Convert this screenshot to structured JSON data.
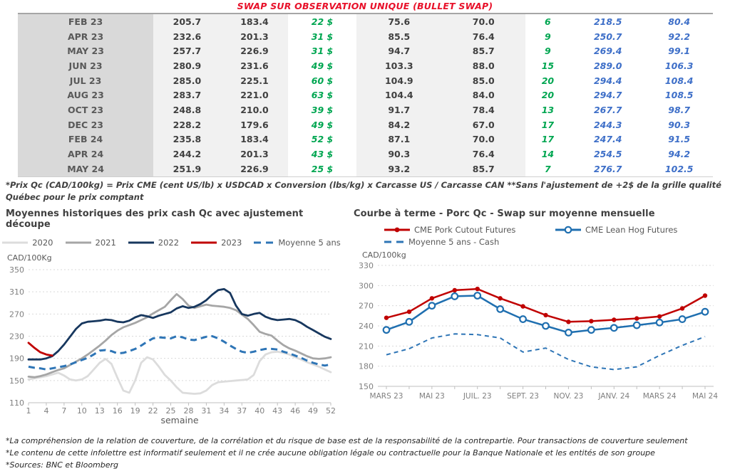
{
  "page_title": "SWAP SUR OBSERVATION UNIQUE (BULLET SWAP)",
  "table": {
    "rows": [
      [
        "FEB 23",
        "205.7",
        "183.4",
        "22 $",
        "75.6",
        "70.0",
        "6",
        "218.5",
        "80.4"
      ],
      [
        "APR 23",
        "232.6",
        "201.3",
        "31 $",
        "85.5",
        "76.4",
        "9",
        "250.7",
        "92.2"
      ],
      [
        "MAY 23",
        "257.7",
        "226.9",
        "31 $",
        "94.7",
        "85.7",
        "9",
        "269.4",
        "99.1"
      ],
      [
        "JUN 23",
        "280.9",
        "231.6",
        "49 $",
        "103.3",
        "88.0",
        "15",
        "289.0",
        "106.3"
      ],
      [
        "JUL 23",
        "285.0",
        "225.1",
        "60 $",
        "104.9",
        "85.0",
        "20",
        "294.4",
        "108.4"
      ],
      [
        "AUG 23",
        "283.7",
        "221.0",
        "63 $",
        "104.4",
        "84.0",
        "20",
        "294.7",
        "108.5"
      ],
      [
        "OCT 23",
        "248.8",
        "210.0",
        "39 $",
        "91.7",
        "78.4",
        "13",
        "267.7",
        "98.7"
      ],
      [
        "DEC 23",
        "228.2",
        "179.6",
        "49 $",
        "84.2",
        "67.0",
        "17",
        "244.3",
        "90.3"
      ],
      [
        "FEB 24",
        "235.8",
        "183.4",
        "52 $",
        "87.1",
        "70.0",
        "17",
        "247.4",
        "91.5"
      ],
      [
        "APR 24",
        "244.2",
        "201.3",
        "43 $",
        "90.3",
        "76.4",
        "14",
        "254.5",
        "94.2"
      ],
      [
        "MAY 24",
        "251.9",
        "226.9",
        "25 $",
        "93.2",
        "85.7",
        "7",
        "276.7",
        "102.5"
      ]
    ]
  },
  "notes": {
    "table_footnote": "*Prix Qc (CAD/100kg) = Prix CME (cent US/lb) x USDCAD x Conversion (lbs/kg) x Carcasse US / Carcasse CAN **Sans l'ajustement de +2$ de la grille qualité Québec pour le prix comptant",
    "disclaimer1": "*La compréhension de la relation de couverture, de la corrélation et du risque de base est de la responsabilité de la contrepartie. Pour transactions de couverture seulement",
    "disclaimer2": "*Le contenu de cette infolettre est informatif seulement et il ne crée aucune obligation légale ou contractuelle pour la Banque Nationale et les entités de son groupe",
    "sources": "*Sources: BNC et Bloomberg"
  },
  "colors": {
    "title_red": "#e8112a",
    "green_value": "#00a651",
    "blue_value": "#3e6fc8",
    "grid": "#d9d9d9",
    "axis": "#bfbfbf",
    "tick_text": "#7f7f7f"
  },
  "chart_data": [
    {
      "type": "line",
      "title": "Moyennes historiques des prix cash Qc avec ajustement découpe",
      "unit_label": "CAD/100Kg",
      "xlabel": "semaine",
      "ylim": [
        110,
        350
      ],
      "yticks": [
        110,
        150,
        190,
        230,
        270,
        310,
        350
      ],
      "xlim": [
        1,
        52
      ],
      "xticks": [
        1,
        4,
        7,
        10,
        13,
        16,
        19,
        22,
        25,
        28,
        31,
        34,
        37,
        40,
        43,
        46,
        49,
        52
      ],
      "grid": true,
      "legend_position": "top",
      "series": [
        {
          "name": "2020",
          "color": "#dcdcdc",
          "style": "solid",
          "marker": "none",
          "values": [
            152,
            154,
            156,
            158,
            161,
            164,
            159,
            152,
            150,
            152,
            158,
            170,
            182,
            189,
            180,
            155,
            132,
            128,
            150,
            182,
            192,
            188,
            175,
            160,
            150,
            138,
            128,
            127,
            126,
            127,
            132,
            142,
            147,
            148,
            149,
            150,
            151,
            152,
            160,
            185,
            197,
            201,
            202,
            200,
            197,
            192,
            188,
            183,
            179,
            175,
            170,
            165
          ]
        },
        {
          "name": "2021",
          "color": "#a6a6a6",
          "style": "solid",
          "marker": "none",
          "values": [
            157,
            156,
            158,
            161,
            165,
            169,
            172,
            178,
            184,
            190,
            197,
            205,
            213,
            222,
            232,
            240,
            246,
            250,
            254,
            259,
            264,
            271,
            277,
            283,
            295,
            306,
            297,
            285,
            281,
            284,
            287,
            285,
            284,
            283,
            281,
            277,
            269,
            261,
            250,
            238,
            234,
            231,
            222,
            214,
            208,
            204,
            199,
            194,
            190,
            189,
            190,
            192
          ]
        },
        {
          "name": "2022",
          "color": "#17375e",
          "style": "solid",
          "marker": "none",
          "values": [
            188,
            188,
            188,
            190,
            194,
            203,
            215,
            229,
            243,
            253,
            256,
            257,
            258,
            260,
            259,
            256,
            255,
            258,
            264,
            268,
            266,
            263,
            267,
            270,
            273,
            280,
            284,
            281,
            283,
            288,
            295,
            305,
            313,
            315,
            308,
            285,
            270,
            267,
            270,
            272,
            265,
            261,
            259,
            260,
            261,
            259,
            254,
            247,
            241,
            235,
            229,
            225
          ]
        },
        {
          "name": "2023",
          "color": "#c00000",
          "style": "solid",
          "marker": "none",
          "values": [
            218,
            209,
            201,
            197,
            195
          ]
        },
        {
          "name": "Moyenne 5 ans",
          "color": "#2e75b6",
          "style": "dashed",
          "marker": "none",
          "values": [
            175,
            173,
            172,
            170,
            172,
            174,
            176,
            179,
            183,
            187,
            191,
            197,
            204,
            205,
            203,
            199,
            200,
            203,
            207,
            213,
            220,
            226,
            228,
            227,
            226,
            230,
            228,
            224,
            223,
            226,
            229,
            230,
            226,
            220,
            213,
            207,
            202,
            200,
            202,
            205,
            207,
            207,
            206,
            202,
            199,
            195,
            191,
            186,
            182,
            179,
            177,
            179
          ]
        }
      ]
    },
    {
      "type": "line",
      "title": "Courbe à terme - Porc Qc - Swap sur moyenne mensuelle",
      "unit_label": "CAD/100kg",
      "ylim": [
        150,
        330
      ],
      "yticks": [
        150,
        180,
        210,
        240,
        270,
        300,
        330
      ],
      "points": 15,
      "xtick_labels": [
        "MARS 23",
        "MAI 23",
        "JUIL. 23",
        "SEPT. 23",
        "NOV. 23",
        "JANV. 24",
        "MARS 24",
        "MAI 24"
      ],
      "xtick_positions": [
        0,
        2,
        4,
        6,
        8,
        10,
        12,
        14
      ],
      "grid": true,
      "legend_position": "top",
      "series": [
        {
          "name": "CME Pork Cutout Futures",
          "color": "#c00000",
          "style": "solid",
          "marker": "filled-circle",
          "values": [
            252,
            261,
            281,
            293,
            295,
            281,
            269,
            256,
            246,
            247,
            249,
            251,
            254,
            266,
            285
          ]
        },
        {
          "name": "CME Lean Hog Futures",
          "color": "#1f6fb0",
          "style": "solid",
          "marker": "open-circle",
          "values": [
            234,
            246,
            270,
            284,
            285,
            265,
            250,
            240,
            230,
            234,
            237,
            241,
            245,
            250,
            261
          ]
        },
        {
          "name": "Moyenne 5 ans - Cash",
          "color": "#2e75b6",
          "style": "dashed",
          "marker": "none",
          "values": [
            197,
            206,
            222,
            228,
            227,
            222,
            201,
            207,
            190,
            179,
            175,
            179,
            196,
            211,
            224
          ]
        }
      ]
    }
  ]
}
